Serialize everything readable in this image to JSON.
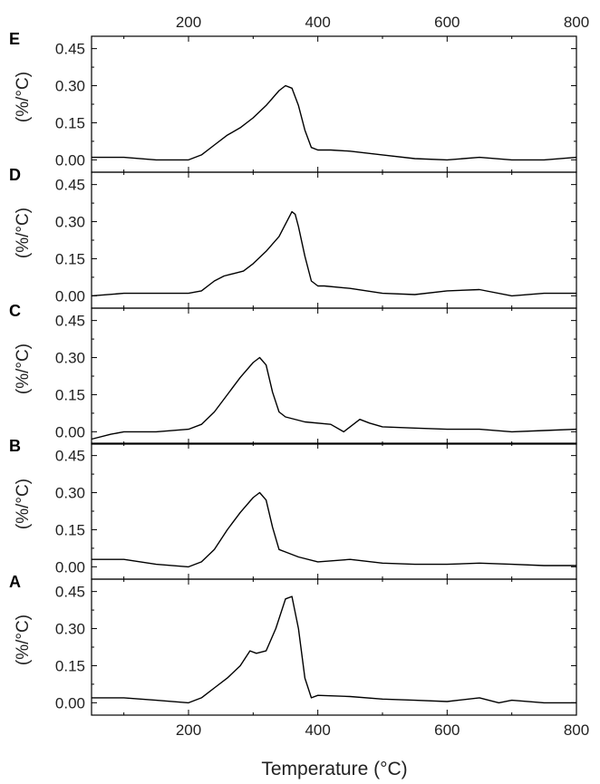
{
  "chart_data": {
    "type": "line",
    "xlabel": "Temperature (°C)",
    "ylabel": "(%/°C)",
    "xlim": [
      50,
      800
    ],
    "ylim": [
      -0.05,
      0.5
    ],
    "x_ticks": [
      "200",
      "400",
      "600",
      "800"
    ],
    "y_ticks": [
      "0.00",
      "0.15",
      "0.30",
      "0.45"
    ],
    "grid": false,
    "legend": "none",
    "panels": [
      {
        "letter": "E",
        "x": [
          50,
          100,
          150,
          200,
          220,
          240,
          260,
          280,
          300,
          320,
          340,
          350,
          360,
          370,
          380,
          390,
          400,
          420,
          450,
          500,
          550,
          600,
          650,
          700,
          750,
          800
        ],
        "y": [
          0.01,
          0.01,
          0.0,
          0.0,
          0.02,
          0.06,
          0.1,
          0.13,
          0.17,
          0.22,
          0.28,
          0.3,
          0.29,
          0.22,
          0.12,
          0.05,
          0.04,
          0.04,
          0.035,
          0.02,
          0.005,
          0.0,
          0.01,
          0.0,
          0.0,
          0.01
        ]
      },
      {
        "letter": "D",
        "x": [
          50,
          100,
          150,
          200,
          220,
          240,
          255,
          270,
          285,
          300,
          320,
          340,
          360,
          365,
          370,
          380,
          390,
          400,
          410,
          450,
          500,
          550,
          600,
          650,
          700,
          750,
          800
        ],
        "y": [
          0.0,
          0.01,
          0.01,
          0.01,
          0.02,
          0.06,
          0.08,
          0.09,
          0.1,
          0.13,
          0.18,
          0.24,
          0.34,
          0.33,
          0.28,
          0.16,
          0.06,
          0.04,
          0.04,
          0.03,
          0.01,
          0.005,
          0.02,
          0.025,
          0.0,
          0.01,
          0.01
        ]
      },
      {
        "letter": "C",
        "x": [
          50,
          80,
          100,
          150,
          200,
          220,
          240,
          260,
          280,
          300,
          310,
          320,
          330,
          340,
          350,
          380,
          420,
          440,
          450,
          465,
          480,
          500,
          550,
          600,
          650,
          700,
          750,
          800
        ],
        "y": [
          -0.03,
          -0.01,
          0.0,
          0.0,
          0.01,
          0.03,
          0.08,
          0.15,
          0.22,
          0.28,
          0.3,
          0.27,
          0.16,
          0.08,
          0.06,
          0.04,
          0.03,
          0.0,
          0.02,
          0.05,
          0.035,
          0.02,
          0.015,
          0.01,
          0.01,
          0.0,
          0.005,
          0.01
        ]
      },
      {
        "letter": "B",
        "x": [
          50,
          100,
          150,
          200,
          220,
          240,
          260,
          280,
          300,
          310,
          320,
          330,
          340,
          350,
          370,
          400,
          450,
          500,
          550,
          600,
          650,
          700,
          750,
          800
        ],
        "y": [
          0.03,
          0.03,
          0.01,
          0.0,
          0.02,
          0.07,
          0.15,
          0.22,
          0.28,
          0.3,
          0.27,
          0.16,
          0.07,
          0.06,
          0.04,
          0.02,
          0.03,
          0.015,
          0.01,
          0.01,
          0.015,
          0.01,
          0.005,
          0.005
        ]
      },
      {
        "letter": "A",
        "x": [
          50,
          100,
          150,
          200,
          220,
          240,
          260,
          280,
          295,
          305,
          320,
          335,
          350,
          360,
          370,
          380,
          390,
          400,
          450,
          500,
          550,
          600,
          650,
          680,
          700,
          750,
          800
        ],
        "y": [
          0.02,
          0.02,
          0.01,
          0.0,
          0.02,
          0.06,
          0.1,
          0.15,
          0.21,
          0.2,
          0.21,
          0.3,
          0.42,
          0.43,
          0.3,
          0.1,
          0.02,
          0.03,
          0.025,
          0.015,
          0.01,
          0.005,
          0.02,
          0.0,
          0.01,
          0.0,
          0.0
        ]
      }
    ]
  }
}
